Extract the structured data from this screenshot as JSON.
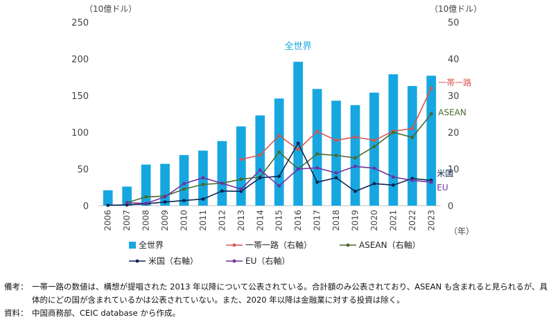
{
  "chart_data": {
    "type": "bar+line",
    "categories": [
      "2006",
      "2007",
      "2008",
      "2009",
      "2010",
      "2011",
      "2012",
      "2013",
      "2014",
      "2015",
      "2016",
      "2017",
      "2018",
      "2019",
      "2020",
      "2021",
      "2022",
      "2023"
    ],
    "left_unit": "（10億ドル）",
    "right_unit": "（10億ドル）",
    "x_unit": "（年）",
    "left_ylim": [
      0,
      250
    ],
    "left_ticks": [
      "0",
      "50",
      "100",
      "150",
      "200",
      "250"
    ],
    "right_ylim": [
      0,
      50
    ],
    "right_ticks": [
      "0",
      "10",
      "20",
      "30",
      "40",
      "50"
    ],
    "bar_series": {
      "name": "全世界",
      "axis": "left",
      "color": "#17a7e0",
      "annotation": "全世界",
      "values": [
        21,
        26,
        56,
        57,
        69,
        75,
        88,
        108,
        123,
        146,
        196,
        159,
        143,
        137,
        154,
        179,
        163,
        177
      ]
    },
    "line_series": [
      {
        "name": "一帯一路（右軸）",
        "label": "一帯一路",
        "axis": "right",
        "color": "#d9544d",
        "values": [
          null,
          null,
          null,
          null,
          null,
          null,
          null,
          12.6,
          13.8,
          19.1,
          15.3,
          20.2,
          17.8,
          18.7,
          17.8,
          20.3,
          21.0,
          32.0
        ]
      },
      {
        "name": "ASEAN（右軸）",
        "label": "ASEAN",
        "axis": "right",
        "color": "#4a6a2a",
        "values": [
          null,
          0.8,
          2.4,
          2.6,
          4.5,
          5.8,
          6.1,
          7.2,
          7.8,
          14.6,
          10.0,
          14.1,
          13.7,
          13.0,
          16.1,
          20.0,
          18.6,
          25.0
        ]
      },
      {
        "name": "米国（右軸）",
        "label": "米国",
        "axis": "right",
        "color": "#0d2350",
        "values": [
          0.1,
          0.2,
          0.5,
          1.0,
          1.4,
          1.8,
          4.0,
          3.9,
          7.6,
          8.0,
          17.0,
          6.4,
          7.6,
          3.9,
          6.0,
          5.6,
          7.4,
          6.9
        ]
      },
      {
        "name": "EU（右軸）",
        "label": "EU",
        "axis": "right",
        "color": "#7030a0",
        "values": [
          null,
          0.8,
          0.6,
          2.4,
          6.0,
          7.6,
          6.1,
          4.5,
          9.7,
          5.4,
          10.0,
          10.3,
          8.9,
          10.7,
          10.2,
          7.8,
          6.9,
          6.4
        ]
      }
    ]
  },
  "notes": {
    "remarks_label": "備考：",
    "remarks_text": "一帯一路の数値は、構想が提唱された 2013 年以降について公表されている。合計額のみ公表されており、ASEAN も含まれると見られるが、具体的にどの国が含まれているかは公表されていない。また、2020 年以降は金融業に対する投資は除く。",
    "source_label": "資料：",
    "source_text": "中国商務部、CEIC database から作成。"
  }
}
